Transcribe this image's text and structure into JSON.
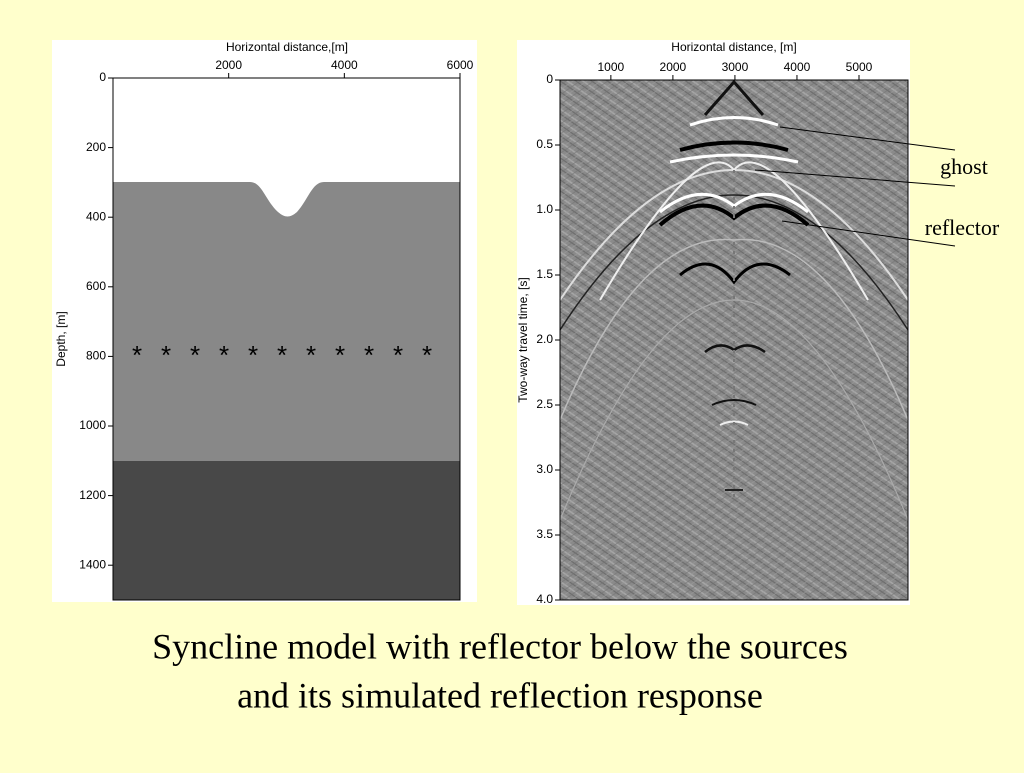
{
  "left_panel": {
    "x_axis_label": "Horizontal distance,[m]",
    "y_axis_label": "Depth, [m]",
    "xlim": [
      0,
      6000
    ],
    "xticks": [
      2000,
      4000,
      6000
    ],
    "ylim": [
      0,
      1500
    ],
    "yticks": [
      0,
      200,
      400,
      600,
      800,
      1000,
      1200,
      1400
    ]
  },
  "right_panel": {
    "x_axis_label": "Horizontal distance, [m]",
    "y_axis_label": "Two-way travel time, [s]",
    "xlim": [
      180,
      5790
    ],
    "xticks": [
      1000,
      2000,
      3000,
      4000,
      5000
    ],
    "ylim": [
      0,
      4
    ],
    "yticks": [
      0,
      0.5,
      {
        "value": 1,
        "label": "1.0"
      },
      1.5,
      {
        "value": 2,
        "label": "2.0"
      },
      2.5,
      {
        "value": 3,
        "label": "3.0"
      },
      3.5,
      {
        "value": 4,
        "label": "4.0"
      }
    ],
    "annotations": [
      "ghost",
      "reflector"
    ]
  },
  "caption": [
    "Syncline model with reflector below the sources",
    "and its simulated reflection response"
  ]
}
